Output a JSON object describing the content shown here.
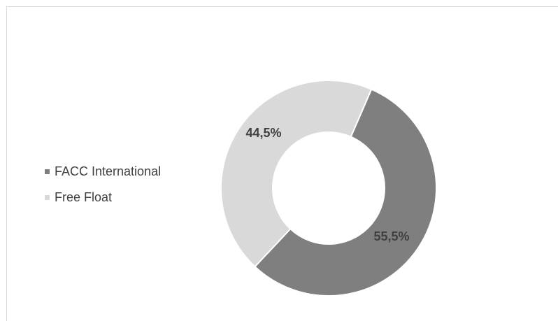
{
  "chart_data": {
    "type": "pie",
    "variant": "donut",
    "title": "",
    "categories": [
      "FACC International",
      "Free Float"
    ],
    "values": [
      55.5,
      44.5
    ],
    "labels": [
      "55,5%",
      "44,5%"
    ],
    "colors": [
      "#7f7f7f",
      "#d9d9d9"
    ],
    "legend_position": "left"
  }
}
